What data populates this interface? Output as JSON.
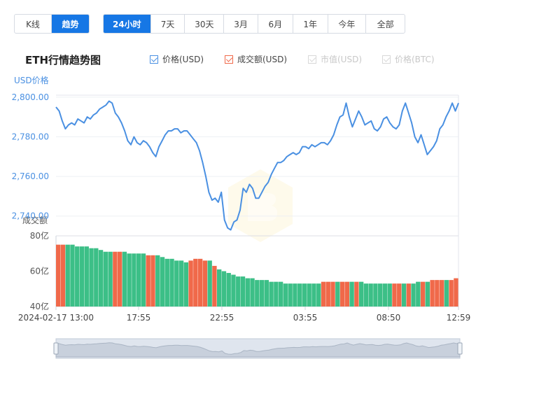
{
  "view_tabs": [
    "K线",
    "趋势"
  ],
  "range_tabs": [
    "24小时",
    "7天",
    "30天",
    "3月",
    "6月",
    "1年",
    "今年",
    "全部"
  ],
  "title": "ETH行情趋势图",
  "legend": [
    {
      "label": "价格(USD)",
      "active": true,
      "color": "#4a90e2"
    },
    {
      "label": "成交额(USD)",
      "active": true,
      "color": "#f0694a"
    },
    {
      "label": "市值(USD)",
      "active": false,
      "color": "#cccccc"
    },
    {
      "label": "价格(BTC)",
      "active": false,
      "color": "#cccccc"
    }
  ],
  "colors": {
    "accent": "#1677e5",
    "price_line": "#4a90e2",
    "volume_up": "#3cbf87",
    "volume_down": "#f0694a"
  },
  "chart_data": [
    {
      "type": "line",
      "name": "price",
      "ylabel": "USD价格",
      "ylim": [
        2730,
        2801
      ],
      "yticks": [
        "2,800.00",
        "2,780.00",
        "2,760.00",
        "2,740.00"
      ],
      "xticks": [
        "2024-02-17 13:00",
        "17:55",
        "22:55",
        "03:55",
        "08:50",
        "12:59"
      ],
      "values": [
        2795,
        2793,
        2788,
        2784,
        2786,
        2787,
        2786,
        2789,
        2788,
        2787,
        2790,
        2789,
        2791,
        2792,
        2794,
        2795,
        2796,
        2798,
        2797,
        2792,
        2790,
        2787,
        2783,
        2778,
        2776,
        2780,
        2777,
        2776,
        2778,
        2777,
        2775,
        2772,
        2770,
        2775,
        2778,
        2781,
        2783,
        2783,
        2784,
        2784,
        2782,
        2783,
        2783,
        2781,
        2779,
        2777,
        2773,
        2767,
        2760,
        2752,
        2748,
        2749,
        2747,
        2752,
        2738,
        2734,
        2733,
        2737,
        2738,
        2743,
        2754,
        2752,
        2756,
        2754,
        2749,
        2749,
        2752,
        2755,
        2757,
        2761,
        2764,
        2767,
        2767,
        2768,
        2770,
        2771,
        2772,
        2771,
        2772,
        2775,
        2775,
        2774,
        2776,
        2775,
        2776,
        2777,
        2777,
        2776,
        2778,
        2781,
        2786,
        2790,
        2791,
        2797,
        2790,
        2785,
        2789,
        2793,
        2790,
        2786,
        2787,
        2788,
        2784,
        2783,
        2785,
        2789,
        2790,
        2787,
        2785,
        2784,
        2786,
        2793,
        2797,
        2792,
        2787,
        2780,
        2777,
        2781,
        2776,
        2771,
        2773,
        2775,
        2778,
        2784,
        2786,
        2790,
        2793,
        2797,
        2793,
        2797
      ]
    },
    {
      "type": "bar",
      "name": "volume",
      "ylabel": "成交额",
      "ylim": [
        40,
        80
      ],
      "yticks": [
        "80亿",
        "60亿",
        "40亿"
      ],
      "values": [
        75,
        75,
        75,
        75,
        74,
        74,
        74,
        73,
        73,
        72,
        71,
        71,
        71,
        71,
        71,
        70,
        70,
        70,
        70,
        69,
        69,
        69,
        68,
        67,
        67,
        66,
        66,
        65,
        66,
        67,
        67,
        66,
        66,
        63,
        61,
        60,
        59,
        58,
        57,
        57,
        56,
        56,
        55,
        55,
        55,
        54,
        54,
        54,
        53,
        53,
        53,
        53,
        53,
        53,
        53,
        53,
        54,
        54,
        54,
        54,
        54,
        54,
        54,
        54,
        54,
        53,
        53,
        53,
        53,
        53,
        53,
        53,
        53,
        53,
        53,
        53,
        54,
        54,
        54,
        55,
        55,
        55,
        55,
        55,
        56
      ],
      "down_mask": [
        1,
        1,
        0,
        0,
        0,
        0,
        0,
        0,
        0,
        0,
        0,
        0,
        1,
        1,
        0,
        0,
        0,
        0,
        0,
        1,
        1,
        0,
        0,
        0,
        0,
        0,
        0,
        0,
        1,
        1,
        1,
        1,
        0,
        1,
        0,
        0,
        0,
        0,
        0,
        0,
        0,
        0,
        0,
        0,
        0,
        0,
        0,
        0,
        0,
        0,
        0,
        0,
        0,
        0,
        0,
        0,
        1,
        1,
        1,
        0,
        1,
        1,
        0,
        1,
        0,
        0,
        0,
        0,
        0,
        0,
        0,
        1,
        1,
        0,
        1,
        0,
        0,
        1,
        0,
        1,
        1,
        1,
        0,
        1,
        1
      ]
    }
  ]
}
